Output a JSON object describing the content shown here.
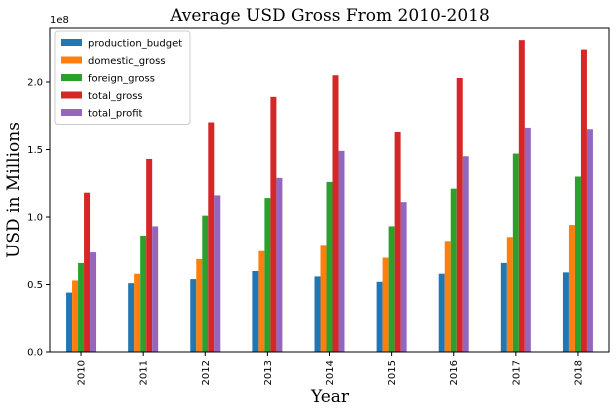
{
  "chart_data": {
    "type": "bar",
    "title": "Average USD Gross From 2010-2018",
    "xlabel": "Year",
    "ylabel": "USD in Millions",
    "y_offset_label": "1e8",
    "ylim": [
      0,
      2.4
    ],
    "yticks": [
      "0.0",
      "0.5",
      "1.0",
      "1.5",
      "2.0"
    ],
    "categories": [
      "2010",
      "2011",
      "2012",
      "2013",
      "2014",
      "2015",
      "2016",
      "2017",
      "2018"
    ],
    "legend_position": "top-left",
    "grid": false,
    "series": [
      {
        "name": "production_budget",
        "color": "#1f77b4",
        "values": [
          0.44,
          0.51,
          0.54,
          0.6,
          0.56,
          0.52,
          0.58,
          0.66,
          0.59
        ]
      },
      {
        "name": "domestic_gross",
        "color": "#ff7f0e",
        "values": [
          0.53,
          0.58,
          0.69,
          0.75,
          0.79,
          0.7,
          0.82,
          0.85,
          0.94
        ]
      },
      {
        "name": "foreign_gross",
        "color": "#2ca02c",
        "values": [
          0.66,
          0.86,
          1.01,
          1.14,
          1.26,
          0.93,
          1.21,
          1.47,
          1.3
        ]
      },
      {
        "name": "total_gross",
        "color": "#d62728",
        "values": [
          1.18,
          1.43,
          1.7,
          1.89,
          2.05,
          1.63,
          2.03,
          2.31,
          2.24
        ]
      },
      {
        "name": "total_profit",
        "color": "#9467bd",
        "values": [
          0.74,
          0.93,
          1.16,
          1.29,
          1.49,
          1.11,
          1.45,
          1.66,
          1.65
        ]
      }
    ]
  }
}
